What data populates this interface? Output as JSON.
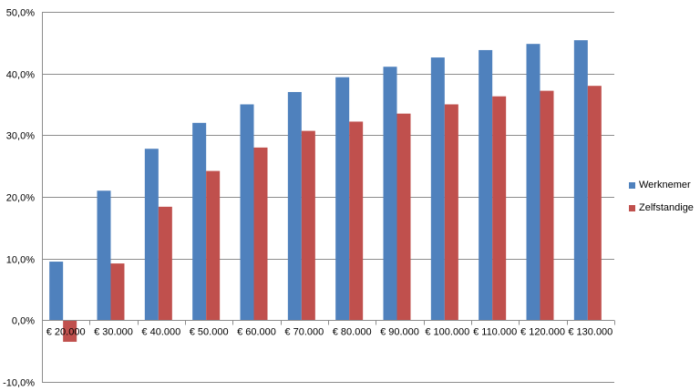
{
  "chart_data": {
    "type": "bar",
    "title": "",
    "xlabel": "",
    "ylabel": "",
    "categories": [
      "€ 20.000",
      "€ 30.000",
      "€ 40.000",
      "€ 50.000",
      "€ 60.000",
      "€ 70.000",
      "€ 80.000",
      "€ 90.000",
      "€ 100.000",
      "€ 110.000",
      "€ 120.000",
      "€ 130.000"
    ],
    "series": [
      {
        "name": "Werknemer",
        "color": "#4f81bd",
        "values": [
          9.5,
          21.0,
          27.8,
          32.0,
          35.0,
          37.0,
          39.4,
          41.1,
          42.6,
          43.8,
          44.8,
          45.4
        ]
      },
      {
        "name": "Zelfstandige",
        "color": "#c0504d",
        "values": [
          -3.5,
          9.2,
          18.4,
          24.2,
          28.0,
          30.7,
          32.2,
          33.5,
          35.0,
          36.3,
          37.2,
          38.0
        ]
      }
    ],
    "ylim": [
      -10,
      50
    ],
    "yticks": [
      -10,
      0,
      10,
      20,
      30,
      40,
      50
    ],
    "ytick_labels": [
      "-10,0%",
      "0,0%",
      "10,0%",
      "20,0%",
      "30,0%",
      "40,0%",
      "50,0%"
    ],
    "grid": true,
    "legend_position": "right"
  }
}
